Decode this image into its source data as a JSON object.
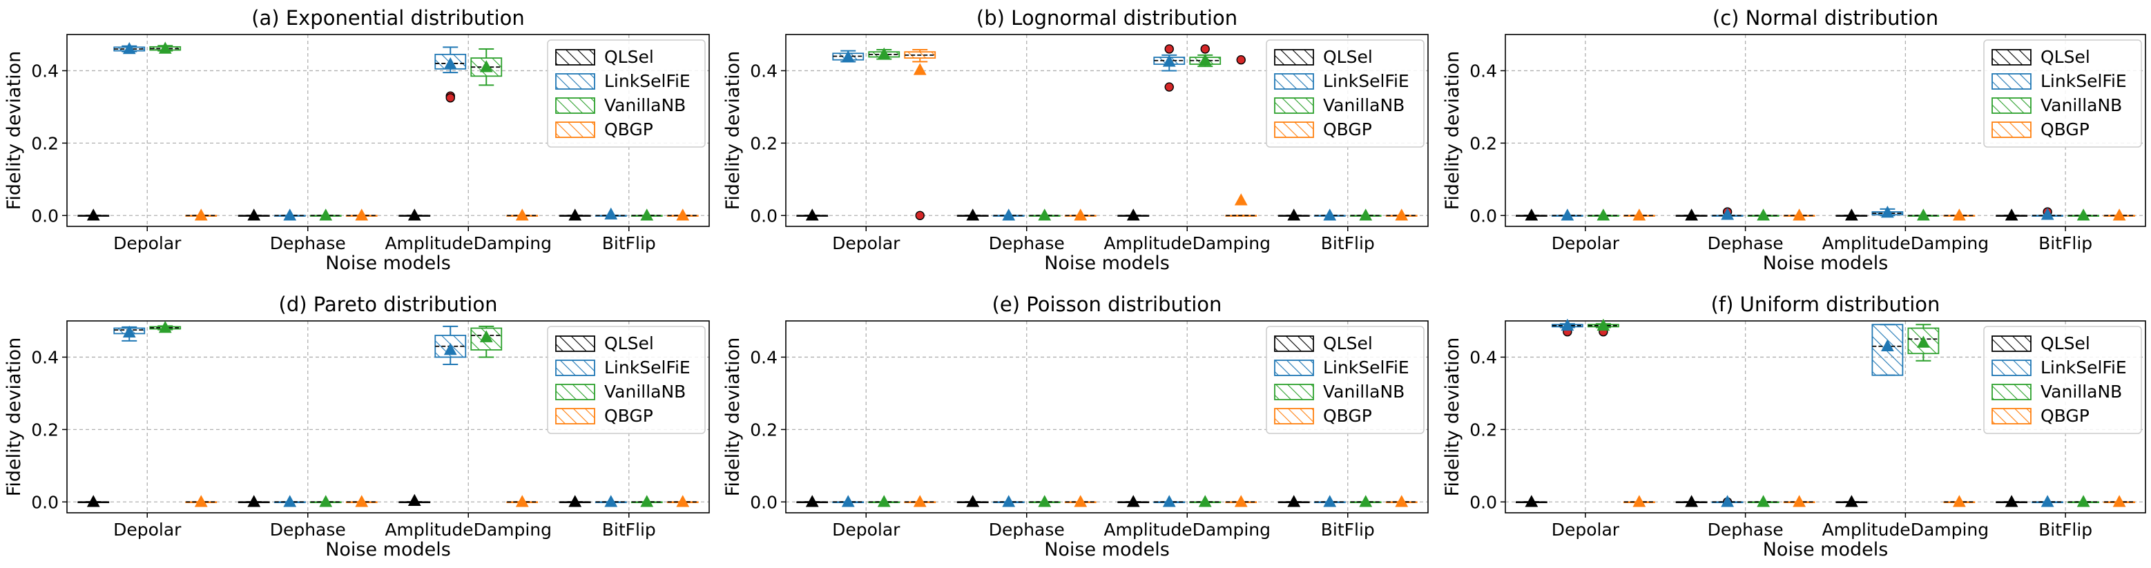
{
  "chart_data": {
    "type": "box",
    "grid": true,
    "legend_placement": "upper right",
    "categories": [
      "Depolar",
      "Dephase",
      "AmplitudeDamping",
      "BitFlip"
    ],
    "series_names": [
      "QLSel",
      "LinkSelFiE",
      "VanillaNB",
      "QBGP"
    ],
    "series_colors": [
      "#000000",
      "#1f77b4",
      "#2ca02c",
      "#ff7f0e"
    ],
    "xlabel": "Noise models",
    "ylabel": "Fidelity deviation",
    "ylim": [
      -0.03,
      0.5
    ],
    "yticks": [
      "0.0",
      "0.2",
      "0.4"
    ],
    "ytick_values": [
      0.0,
      0.2,
      0.4
    ],
    "box_fields": [
      "q1",
      "median",
      "q3",
      "whisker_low",
      "whisker_high",
      "mean",
      "outliers"
    ],
    "panels": [
      {
        "title": "(a) Exponential distribution",
        "boxes": [
          [
            [
              0,
              0,
              0,
              0,
              0,
              0,
              []
            ],
            [
              0,
              0,
              0,
              0,
              0,
              0,
              []
            ],
            [
              0,
              0,
              0,
              0,
              0,
              0,
              []
            ],
            [
              0,
              0,
              0,
              0,
              0,
              0,
              []
            ]
          ],
          [
            [
              0.455,
              0.46,
              0.465,
              0.453,
              0.468,
              0.46,
              []
            ],
            [
              0,
              0,
              0,
              0,
              0,
              0,
              []
            ],
            [
              0.405,
              0.42,
              0.445,
              0.395,
              0.465,
              0.418,
              [
                0.33,
                0.325
              ]
            ],
            [
              0,
              0,
              0,
              0,
              0,
              0.003,
              []
            ]
          ],
          [
            [
              0.457,
              0.461,
              0.466,
              0.455,
              0.469,
              0.461,
              []
            ],
            [
              0,
              0,
              0,
              0,
              0,
              0,
              []
            ],
            [
              0.385,
              0.41,
              0.435,
              0.36,
              0.46,
              0.41,
              []
            ],
            [
              0,
              0,
              0,
              0,
              0,
              0,
              []
            ]
          ],
          [
            [
              0,
              0,
              0,
              0,
              0,
              0,
              []
            ],
            [
              0,
              0,
              0,
              0,
              0,
              0,
              []
            ],
            [
              0,
              0,
              0,
              0,
              0,
              0,
              []
            ],
            [
              0,
              0,
              0,
              0,
              0,
              0,
              []
            ]
          ]
        ]
      },
      {
        "title": "(b) Lognormal distribution",
        "boxes": [
          [
            [
              0,
              0,
              0,
              0,
              0,
              0,
              []
            ],
            [
              0,
              0,
              0,
              0,
              0,
              0,
              []
            ],
            [
              0,
              0,
              0,
              0,
              0,
              0,
              []
            ],
            [
              0,
              0,
              0,
              0,
              0,
              0,
              []
            ]
          ],
          [
            [
              0.43,
              0.44,
              0.448,
              0.425,
              0.455,
              0.437,
              []
            ],
            [
              0,
              0,
              0,
              0,
              0,
              0,
              []
            ],
            [
              0.418,
              0.428,
              0.437,
              0.4,
              0.443,
              0.425,
              [
                0.46,
                0.355
              ]
            ],
            [
              0,
              0,
              0,
              0,
              0,
              0,
              []
            ]
          ],
          [
            [
              0.438,
              0.445,
              0.452,
              0.432,
              0.458,
              0.445,
              []
            ],
            [
              0,
              0,
              0,
              0,
              0,
              0,
              []
            ],
            [
              0.418,
              0.428,
              0.437,
              0.412,
              0.443,
              0.428,
              [
                0.46
              ]
            ],
            [
              0,
              0,
              0,
              0,
              0,
              0,
              []
            ]
          ],
          [
            [
              0.435,
              0.443,
              0.452,
              0.425,
              0.458,
              0.402,
              [
                0.0
              ]
            ],
            [
              0,
              0,
              0,
              0,
              0,
              0,
              []
            ],
            [
              0,
              0,
              0,
              0,
              0,
              0.042,
              [
                0.43
              ]
            ],
            [
              0,
              0,
              0,
              0,
              0,
              0,
              []
            ]
          ]
        ]
      },
      {
        "title": "(c) Normal distribution",
        "boxes": [
          [
            [
              0,
              0,
              0,
              0,
              0,
              0,
              []
            ],
            [
              0,
              0,
              0,
              0,
              0,
              0,
              []
            ],
            [
              0,
              0,
              0,
              0,
              0,
              0,
              []
            ],
            [
              0,
              0,
              0,
              0,
              0,
              0,
              []
            ]
          ],
          [
            [
              0,
              0,
              0,
              0,
              0,
              0,
              []
            ],
            [
              0,
              0,
              0,
              0,
              0,
              0.002,
              [
                0.01
              ]
            ],
            [
              0.002,
              0.006,
              0.01,
              0,
              0.018,
              0.008,
              []
            ],
            [
              0,
              0,
              0,
              0,
              0,
              0.002,
              [
                0.01
              ]
            ]
          ],
          [
            [
              0,
              0,
              0,
              0,
              0,
              0,
              []
            ],
            [
              0,
              0,
              0,
              0,
              0,
              0,
              []
            ],
            [
              0,
              0,
              0,
              0,
              0,
              0,
              []
            ],
            [
              0,
              0,
              0,
              0,
              0,
              0,
              []
            ]
          ],
          [
            [
              0,
              0,
              0,
              0,
              0,
              0,
              []
            ],
            [
              0,
              0,
              0,
              0,
              0,
              0,
              []
            ],
            [
              0,
              0,
              0,
              0,
              0,
              0,
              []
            ],
            [
              0,
              0,
              0,
              0,
              0,
              0,
              []
            ]
          ]
        ]
      },
      {
        "title": "(d) Pareto distribution",
        "boxes": [
          [
            [
              0,
              0,
              0,
              0,
              0,
              0,
              []
            ],
            [
              0,
              0,
              0,
              0,
              0,
              0,
              []
            ],
            [
              0,
              0,
              0,
              0,
              0,
              0.003,
              []
            ],
            [
              0,
              0,
              0,
              0,
              0,
              0,
              []
            ]
          ],
          [
            [
              0.465,
              0.475,
              0.48,
              0.445,
              0.483,
              0.468,
              []
            ],
            [
              0,
              0,
              0,
              0,
              0,
              0,
              []
            ],
            [
              0.4,
              0.43,
              0.46,
              0.38,
              0.485,
              0.42,
              []
            ],
            [
              0,
              0,
              0,
              0,
              0,
              0,
              []
            ]
          ],
          [
            [
              0.478,
              0.481,
              0.484,
              0.476,
              0.486,
              0.481,
              []
            ],
            [
              0,
              0,
              0,
              0,
              0,
              0,
              []
            ],
            [
              0.42,
              0.46,
              0.48,
              0.4,
              0.485,
              0.455,
              []
            ],
            [
              0,
              0,
              0,
              0,
              0,
              0,
              []
            ]
          ],
          [
            [
              0,
              0,
              0,
              0,
              0,
              0,
              []
            ],
            [
              0,
              0,
              0,
              0,
              0,
              0,
              []
            ],
            [
              0,
              0,
              0,
              0,
              0,
              0,
              []
            ],
            [
              0,
              0,
              0,
              0,
              0,
              0,
              []
            ]
          ]
        ]
      },
      {
        "title": "(e) Poisson distribution",
        "boxes": [
          [
            [
              0,
              0,
              0,
              0,
              0,
              0,
              []
            ],
            [
              0,
              0,
              0,
              0,
              0,
              0,
              []
            ],
            [
              0,
              0,
              0,
              0,
              0,
              0,
              []
            ],
            [
              0,
              0,
              0,
              0,
              0,
              0,
              []
            ]
          ],
          [
            [
              0,
              0,
              0,
              0,
              0,
              0,
              []
            ],
            [
              0,
              0,
              0,
              0,
              0,
              0,
              []
            ],
            [
              0,
              0,
              0,
              0,
              0,
              0,
              []
            ],
            [
              0,
              0,
              0,
              0,
              0,
              0,
              []
            ]
          ],
          [
            [
              0,
              0,
              0,
              0,
              0,
              0,
              []
            ],
            [
              0,
              0,
              0,
              0,
              0,
              0,
              []
            ],
            [
              0,
              0,
              0,
              0,
              0,
              0,
              []
            ],
            [
              0,
              0,
              0,
              0,
              0,
              0,
              []
            ]
          ],
          [
            [
              0,
              0,
              0,
              0,
              0,
              0,
              []
            ],
            [
              0,
              0,
              0,
              0,
              0,
              0,
              []
            ],
            [
              0,
              0,
              0,
              0,
              0,
              0,
              []
            ],
            [
              0,
              0,
              0,
              0,
              0,
              0,
              []
            ]
          ]
        ]
      },
      {
        "title": "(f) Uniform distribution",
        "boxes": [
          [
            [
              0,
              0,
              0,
              0,
              0,
              0,
              []
            ],
            [
              0,
              0,
              0,
              0,
              0,
              0,
              []
            ],
            [
              0,
              0,
              0,
              0,
              0,
              0,
              []
            ],
            [
              0,
              0,
              0,
              0,
              0,
              0,
              []
            ]
          ],
          [
            [
              0.484,
              0.487,
              0.49,
              0.482,
              0.492,
              0.487,
              [
                0.47
              ]
            ],
            [
              0,
              0,
              0,
              0,
              0,
              0,
              [
                0.0
              ]
            ],
            [
              0.35,
              0.43,
              0.49,
              0.35,
              0.49,
              0.43,
              []
            ],
            [
              0,
              0,
              0,
              0,
              0,
              0,
              []
            ]
          ],
          [
            [
              0.484,
              0.487,
              0.49,
              0.482,
              0.492,
              0.487,
              [
                0.47
              ]
            ],
            [
              0,
              0,
              0,
              0,
              0,
              0,
              []
            ],
            [
              0.41,
              0.45,
              0.48,
              0.39,
              0.49,
              0.44,
              []
            ],
            [
              0,
              0,
              0,
              0,
              0,
              0,
              []
            ]
          ],
          [
            [
              0,
              0,
              0,
              0,
              0,
              0,
              []
            ],
            [
              0,
              0,
              0,
              0,
              0,
              0,
              []
            ],
            [
              0,
              0,
              0,
              0,
              0,
              0,
              []
            ],
            [
              0,
              0,
              0,
              0,
              0,
              0,
              []
            ]
          ]
        ]
      }
    ]
  }
}
